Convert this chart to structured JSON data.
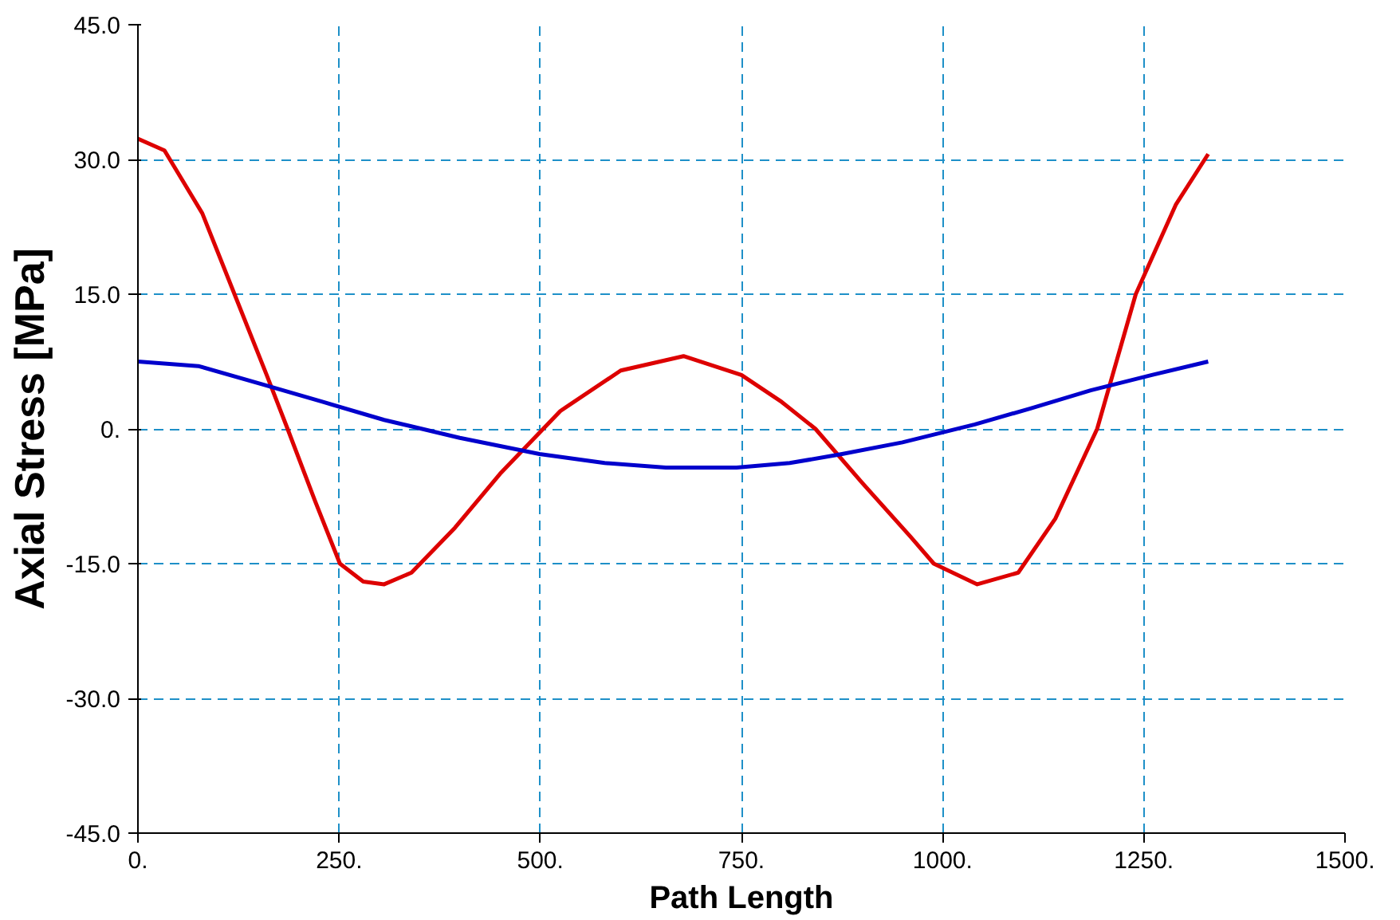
{
  "chart_data": {
    "type": "line",
    "xlabel": "Path Length",
    "ylabel": "Axial Stress [MPa]",
    "xlim": [
      0,
      1500
    ],
    "ylim": [
      -45,
      45
    ],
    "xticks": [
      {
        "value": 0,
        "label": "0."
      },
      {
        "value": 250,
        "label": "250."
      },
      {
        "value": 500,
        "label": "500."
      },
      {
        "value": 750,
        "label": "750."
      },
      {
        "value": 1000,
        "label": "1000."
      },
      {
        "value": 1250,
        "label": "1250."
      },
      {
        "value": 1500,
        "label": "1500."
      }
    ],
    "yticks": [
      {
        "value": -45,
        "label": "-45.0"
      },
      {
        "value": -30,
        "label": "-30.0"
      },
      {
        "value": -15,
        "label": "-15.0"
      },
      {
        "value": 0,
        "label": "0."
      },
      {
        "value": 15,
        "label": "15.0"
      },
      {
        "value": 30,
        "label": "30.0"
      },
      {
        "value": 45,
        "label": "45.0"
      }
    ],
    "grid": true,
    "line_style": "solid",
    "marker": "none",
    "series": [
      {
        "color": "#dd0000",
        "x": [
          0,
          33,
          80,
          120,
          160,
          186,
          220,
          251,
          280,
          306,
          340,
          394,
          450,
          525,
          600,
          678,
          750,
          800,
          842,
          900,
          960,
          989,
          1043,
          1094,
          1140,
          1192,
          1240,
          1290,
          1330
        ],
        "values": [
          32.3,
          31,
          24,
          15,
          6,
          0,
          -8,
          -15,
          -17,
          -17.3,
          -16,
          -11,
          -5,
          2,
          6.5,
          8.1,
          6,
          3,
          0,
          -6,
          -12,
          -15,
          -17.3,
          -16,
          -10,
          0,
          15,
          25,
          30.6
        ]
      },
      {
        "color": "#0000cc",
        "x": [
          0,
          75,
          153,
          230,
          306,
          400,
          499,
          580,
          656,
          744,
          810,
          875,
          950,
          1040,
          1110,
          1184,
          1260,
          1330
        ],
        "values": [
          7.5,
          7,
          5,
          3,
          1,
          -1,
          -2.8,
          -3.8,
          -4.3,
          -4.3,
          -3.8,
          -2.8,
          -1.5,
          0.5,
          2.3,
          4.3,
          6,
          7.5
        ]
      }
    ]
  }
}
